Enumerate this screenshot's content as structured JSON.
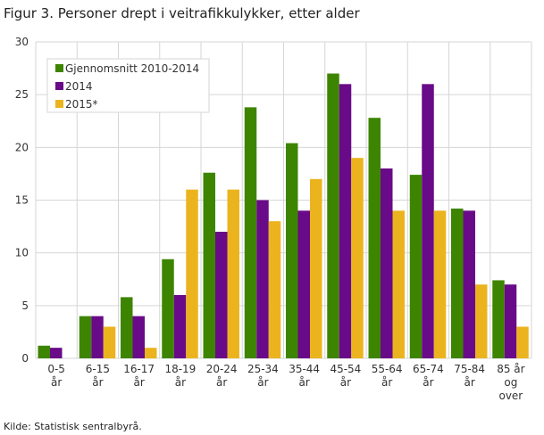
{
  "chart_data": {
    "type": "bar",
    "title": "Figur 3. Personer drept i veitrafikkulykker, etter alder",
    "source": "Kilde: Statistisk sentralbyrå.",
    "categories": [
      [
        "0-5",
        "år"
      ],
      [
        "6-15",
        "år"
      ],
      [
        "16-17",
        "år"
      ],
      [
        "18-19",
        "år"
      ],
      [
        "20-24",
        "år"
      ],
      [
        "25-34",
        "år"
      ],
      [
        "35-44",
        "år"
      ],
      [
        "45-54",
        "år"
      ],
      [
        "55-64",
        "år"
      ],
      [
        "65-74",
        "år"
      ],
      [
        "75-84",
        "år"
      ],
      [
        "85 år",
        "og",
        "over"
      ]
    ],
    "series": [
      {
        "name": "Gjennomsnitt 2010-2014",
        "color": "#3d8500",
        "values": [
          1.2,
          4,
          5.8,
          9.4,
          17.6,
          23.8,
          20.4,
          27,
          22.8,
          17.4,
          14.2,
          7.4
        ]
      },
      {
        "name": "2014",
        "color": "#690a88",
        "values": [
          1,
          4,
          4,
          6,
          12,
          15,
          14,
          26,
          18,
          26,
          14,
          7
        ]
      },
      {
        "name": "2015*",
        "color": "#ebb41f",
        "values": [
          0,
          3,
          1,
          16,
          16,
          13,
          17,
          19,
          14,
          14,
          7,
          3
        ]
      }
    ],
    "ylim": [
      0,
      30
    ],
    "yticks": [
      0,
      5,
      10,
      15,
      20,
      25,
      30
    ],
    "grid": true,
    "legend": "top-left"
  }
}
